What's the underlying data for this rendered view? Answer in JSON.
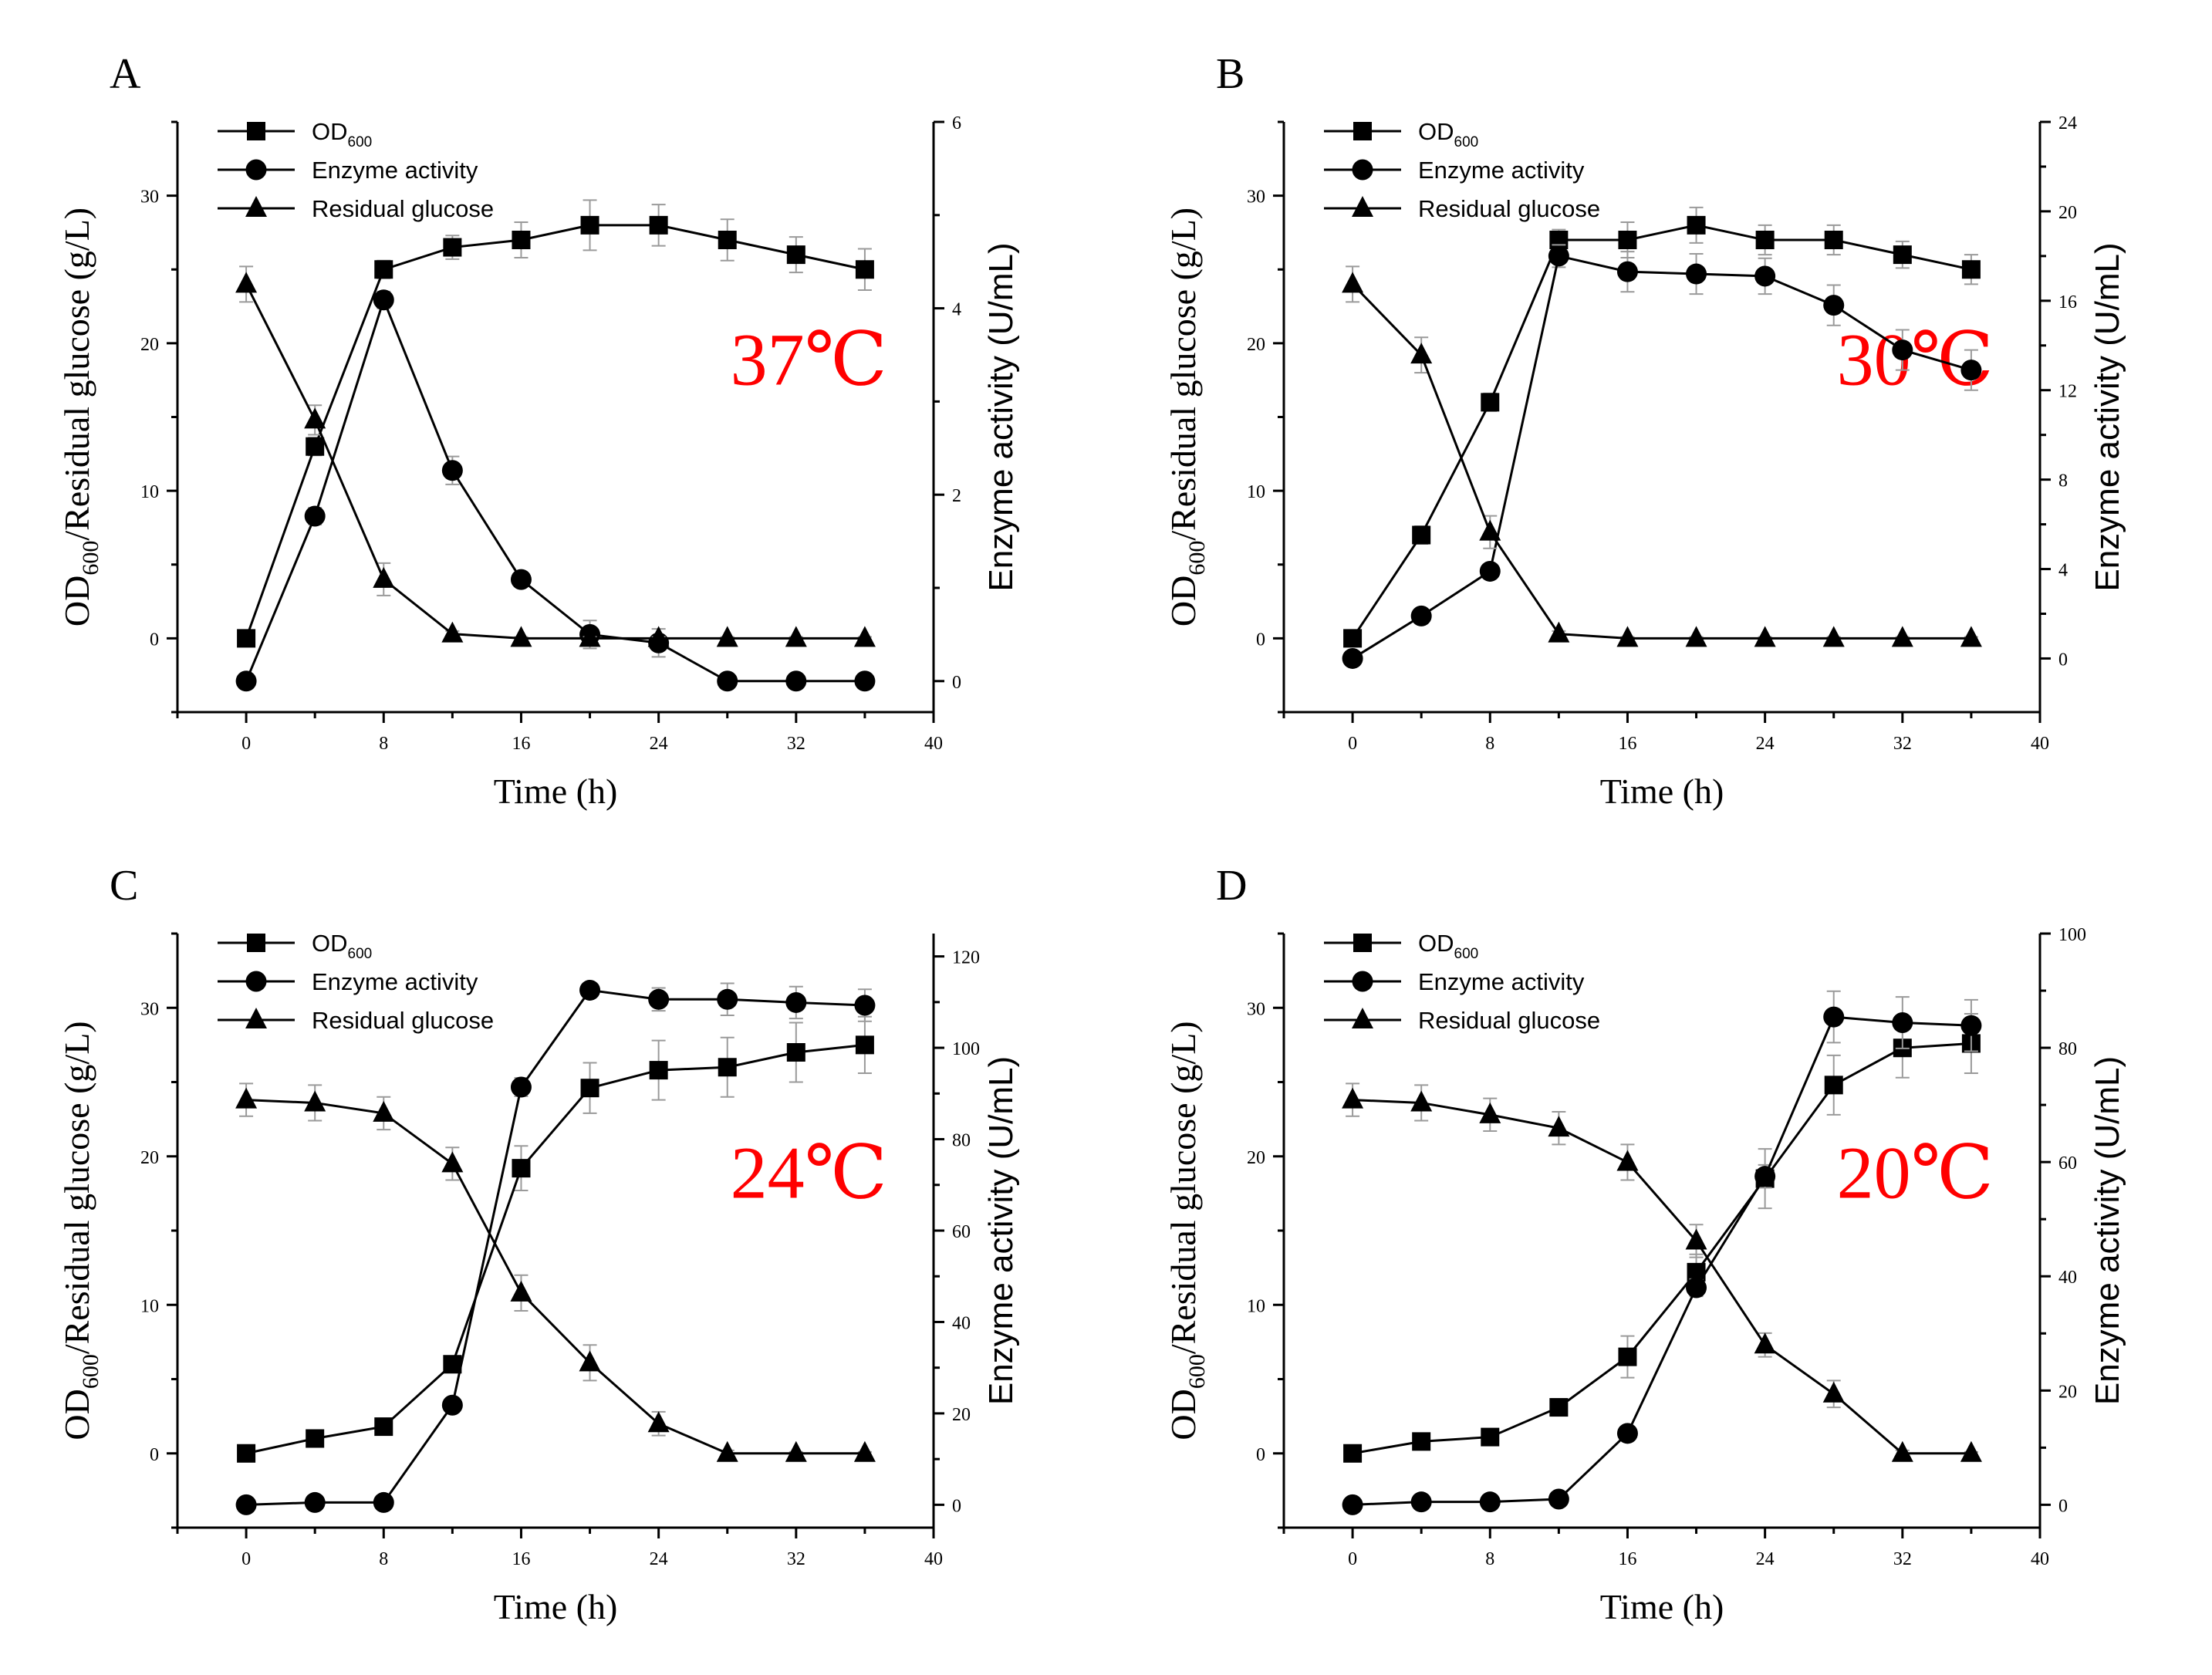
{
  "chart_data": [
    {
      "panel": "A",
      "type": "line",
      "annotation": "37℃",
      "xlabel": "Time (h)",
      "ylabel_left": {
        "main": "OD",
        "sub": "600",
        "rest": "/Residual glucose (g/L)"
      },
      "ylabel_right": "Enzyme activity (U/mL)",
      "xlim": [
        -4,
        40
      ],
      "x_ticks": [
        0,
        8,
        16,
        24,
        32,
        40
      ],
      "ylim_left": [
        -5,
        35
      ],
      "left_ticks": [
        0,
        10,
        20,
        30
      ],
      "ylim_right": [
        -0.333,
        6
      ],
      "right_ticks": [
        0,
        2,
        4,
        6
      ],
      "x": [
        0,
        4,
        8,
        12,
        16,
        20,
        24,
        28,
        32,
        36
      ],
      "series": [
        {
          "name": "OD",
          "name_sub": "600",
          "marker": "square",
          "axis": "left",
          "values": [
            0,
            13,
            25,
            26.5,
            27,
            28,
            28,
            27,
            26,
            25
          ],
          "errors": [
            0.3,
            0.6,
            0.6,
            0.8,
            1.2,
            1.7,
            1.4,
            1.4,
            1.2,
            1.4
          ]
        },
        {
          "name": "Enzyme activity",
          "marker": "circle",
          "axis": "right",
          "values": [
            0,
            1.77,
            4.09,
            2.26,
            1.09,
            0.5,
            0.41,
            0,
            0,
            0
          ],
          "errors": [
            0.03,
            0.09,
            0.09,
            0.15,
            0.06,
            0.15,
            0.15,
            0.04,
            0.04,
            0.03
          ]
        },
        {
          "name": "Residual glucose",
          "marker": "triangle",
          "axis": "left",
          "values": [
            24,
            14.8,
            4,
            0.3,
            0,
            0,
            0,
            0,
            0,
            0
          ],
          "errors": [
            1.2,
            1.0,
            1.1,
            0.2,
            0.1,
            0.1,
            0.1,
            0.1,
            0.1,
            0.1
          ]
        }
      ]
    },
    {
      "panel": "B",
      "type": "line",
      "annotation": "30℃",
      "xlabel": "Time (h)",
      "ylabel_left": {
        "main": "OD",
        "sub": "600",
        "rest": "/Residual glucose (g/L)"
      },
      "ylabel_right": "Enzyme activity (U/mL)",
      "xlim": [
        -4,
        40
      ],
      "x_ticks": [
        0,
        8,
        16,
        24,
        32,
        40
      ],
      "ylim_left": [
        -5,
        35
      ],
      "left_ticks": [
        0,
        10,
        20,
        30
      ],
      "ylim_right": [
        -2.4,
        24
      ],
      "right_ticks": [
        0,
        4,
        8,
        12,
        16,
        20,
        24
      ],
      "x": [
        0,
        4,
        8,
        12,
        16,
        20,
        24,
        28,
        32,
        36
      ],
      "series": [
        {
          "name": "OD",
          "name_sub": "600",
          "marker": "square",
          "axis": "left",
          "values": [
            0,
            7,
            16,
            27,
            27,
            28,
            27,
            27,
            26,
            25
          ],
          "errors": [
            0.3,
            0.6,
            0.6,
            0.7,
            1.2,
            1.2,
            1.0,
            1.0,
            0.9,
            1.0
          ]
        },
        {
          "name": "Enzyme activity",
          "marker": "circle",
          "axis": "right",
          "values": [
            0,
            1.9,
            3.9,
            18,
            17.3,
            17.2,
            17.1,
            15.8,
            13.8,
            12.9
          ],
          "errors": [
            0.1,
            0.2,
            0.3,
            0.5,
            0.9,
            0.9,
            0.8,
            0.9,
            0.9,
            0.9
          ]
        },
        {
          "name": "Residual glucose",
          "marker": "triangle",
          "axis": "left",
          "values": [
            24,
            19.2,
            7.2,
            0.3,
            0,
            0,
            0,
            0,
            0,
            0
          ],
          "errors": [
            1.2,
            1.2,
            1.1,
            0.2,
            0.1,
            0.1,
            0.1,
            0.1,
            0.1,
            0.1
          ]
        }
      ]
    },
    {
      "panel": "C",
      "type": "line",
      "annotation": "24℃",
      "xlabel": "Time (h)",
      "ylabel_left": {
        "main": "OD",
        "sub": "600",
        "rest": "/Residual glucose (g/L)"
      },
      "ylabel_right": "Enzyme activity (U/mL)",
      "xlim": [
        -4,
        40
      ],
      "x_ticks": [
        0,
        8,
        16,
        24,
        32,
        40
      ],
      "ylim_left": [
        -5,
        35
      ],
      "left_ticks": [
        0,
        10,
        20,
        30
      ],
      "ylim_right": [
        -5,
        125
      ],
      "right_ticks": [
        0,
        20,
        40,
        60,
        80,
        100,
        120
      ],
      "x": [
        0,
        4,
        8,
        12,
        16,
        20,
        24,
        28,
        32,
        36
      ],
      "series": [
        {
          "name": "OD",
          "name_sub": "600",
          "marker": "square",
          "axis": "left",
          "values": [
            0,
            1,
            1.8,
            6,
            19.2,
            24.6,
            25.8,
            26,
            27,
            27.5
          ],
          "errors": [
            0.2,
            0.3,
            0.3,
            0.5,
            1.5,
            1.7,
            2.0,
            2.0,
            2.0,
            1.9
          ]
        },
        {
          "name": "Enzyme activity",
          "marker": "circle",
          "axis": "right",
          "values": [
            0,
            0.5,
            0.5,
            21.8,
            91.4,
            112.6,
            110.6,
            110.6,
            109.9,
            109.3
          ],
          "errors": [
            0.2,
            0.3,
            0.3,
            1.0,
            2.0,
            1.5,
            2.5,
            3.5,
            3.5,
            3.5
          ]
        },
        {
          "name": "Residual glucose",
          "marker": "triangle",
          "axis": "left",
          "values": [
            23.8,
            23.6,
            22.9,
            19.5,
            10.8,
            6.1,
            2,
            0,
            0,
            0
          ],
          "errors": [
            1.1,
            1.2,
            1.1,
            1.1,
            1.2,
            1.2,
            0.8,
            0.2,
            0.1,
            0.1
          ]
        }
      ]
    },
    {
      "panel": "D",
      "type": "line",
      "annotation": "20℃",
      "xlabel": "Time (h)",
      "ylabel_left": {
        "main": "OD",
        "sub": "600",
        "rest": "/Residual glucose (g/L)"
      },
      "ylabel_right": "Enzyme activity (U/mL)",
      "xlim": [
        -4,
        40
      ],
      "x_ticks": [
        0,
        8,
        16,
        24,
        32,
        40
      ],
      "ylim_left": [
        -5,
        35
      ],
      "left_ticks": [
        0,
        10,
        20,
        30
      ],
      "ylim_right": [
        -4,
        100
      ],
      "right_ticks": [
        0,
        20,
        40,
        60,
        80,
        100
      ],
      "x": [
        0,
        4,
        8,
        12,
        16,
        20,
        24,
        28,
        32,
        36
      ],
      "series": [
        {
          "name": "OD",
          "name_sub": "600",
          "marker": "square",
          "axis": "left",
          "values": [
            0,
            0.8,
            1.1,
            3.1,
            6.5,
            12.2,
            18.5,
            24.8,
            27.3,
            27.6
          ],
          "errors": [
            0.2,
            0.3,
            0.3,
            0.5,
            1.4,
            1.2,
            2.0,
            2.0,
            2.0,
            2.0
          ]
        },
        {
          "name": "Enzyme activity",
          "marker": "circle",
          "axis": "right",
          "values": [
            0,
            0.5,
            0.5,
            1,
            12.5,
            38,
            57.5,
            85.4,
            84.4,
            83.9
          ],
          "errors": [
            0.2,
            0.2,
            0.2,
            0.4,
            1.0,
            1.5,
            2.0,
            4.5,
            4.5,
            4.5
          ]
        },
        {
          "name": "Residual glucose",
          "marker": "triangle",
          "axis": "left",
          "values": [
            23.8,
            23.6,
            22.8,
            21.9,
            19.6,
            14.3,
            7.3,
            4,
            0,
            0
          ],
          "errors": [
            1.1,
            1.2,
            1.1,
            1.1,
            1.2,
            1.1,
            0.8,
            0.9,
            0.2,
            0.1
          ]
        }
      ]
    }
  ],
  "colors": {
    "ink": "#000000",
    "annotation": "#ff0000",
    "errorbar": "#9a9a9a"
  }
}
